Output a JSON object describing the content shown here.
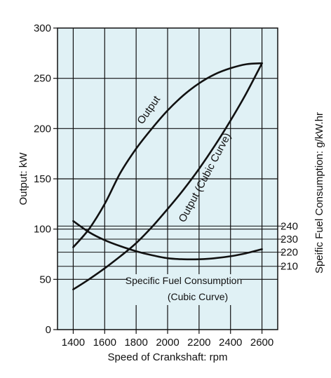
{
  "chart_data": {
    "type": "line",
    "background_color": "#e0f1f5",
    "line_color": "#111111",
    "grid": true,
    "x_axis": {
      "label": "Speed of Crankshaft: rpm",
      "ticks": [
        1400,
        1600,
        1800,
        2000,
        2200,
        2400,
        2600
      ],
      "range": [
        1300,
        2700
      ]
    },
    "y_axis_left": {
      "label": "Output: kW",
      "ticks": [
        0,
        50,
        100,
        150,
        200,
        250,
        300
      ],
      "range": [
        0,
        300
      ]
    },
    "y_axis_right": {
      "label": "Speific Fuel Consumption: g/kW.hr",
      "ticks": [
        {
          "label": "240",
          "left_value": 103
        },
        {
          "label": "230",
          "left_value": 90
        },
        {
          "label": "220",
          "left_value": 77
        },
        {
          "label": "210",
          "left_value": 63
        }
      ]
    },
    "series": [
      {
        "name": "Output",
        "axis": "left",
        "x": [
          1400,
          1500,
          1600,
          1700,
          1800,
          1900,
          2000,
          2100,
          2200,
          2300,
          2400,
          2500,
          2600
        ],
        "y": [
          82,
          100,
          125,
          156,
          180,
          200,
          218,
          233,
          245,
          254,
          260,
          264,
          265
        ]
      },
      {
        "name": "Output (Cubic Curve)",
        "axis": "left",
        "x": [
          1400,
          1500,
          1600,
          1700,
          1800,
          1900,
          2000,
          2100,
          2200,
          2300,
          2400,
          2500,
          2600
        ],
        "y": [
          40,
          50,
          61,
          73,
          86,
          102,
          120,
          139,
          160,
          183,
          208,
          235,
          265
        ]
      },
      {
        "name": "Specific Fuel Consumption (Cubic Curve)",
        "axis": "left",
        "x": [
          1400,
          1500,
          1600,
          1700,
          1800,
          1900,
          2000,
          2100,
          2200,
          2300,
          2400,
          2500,
          2600
        ],
        "y": [
          108,
          97,
          89,
          83,
          78,
          74,
          71,
          70,
          70,
          71,
          73,
          76,
          80
        ]
      }
    ],
    "annotations": {
      "output": "Output",
      "cubic": "Output (Cubic Curve)",
      "sfc_line1": "Specific Fuel Consumption",
      "sfc_line2": "(Cubic Curve)"
    }
  }
}
